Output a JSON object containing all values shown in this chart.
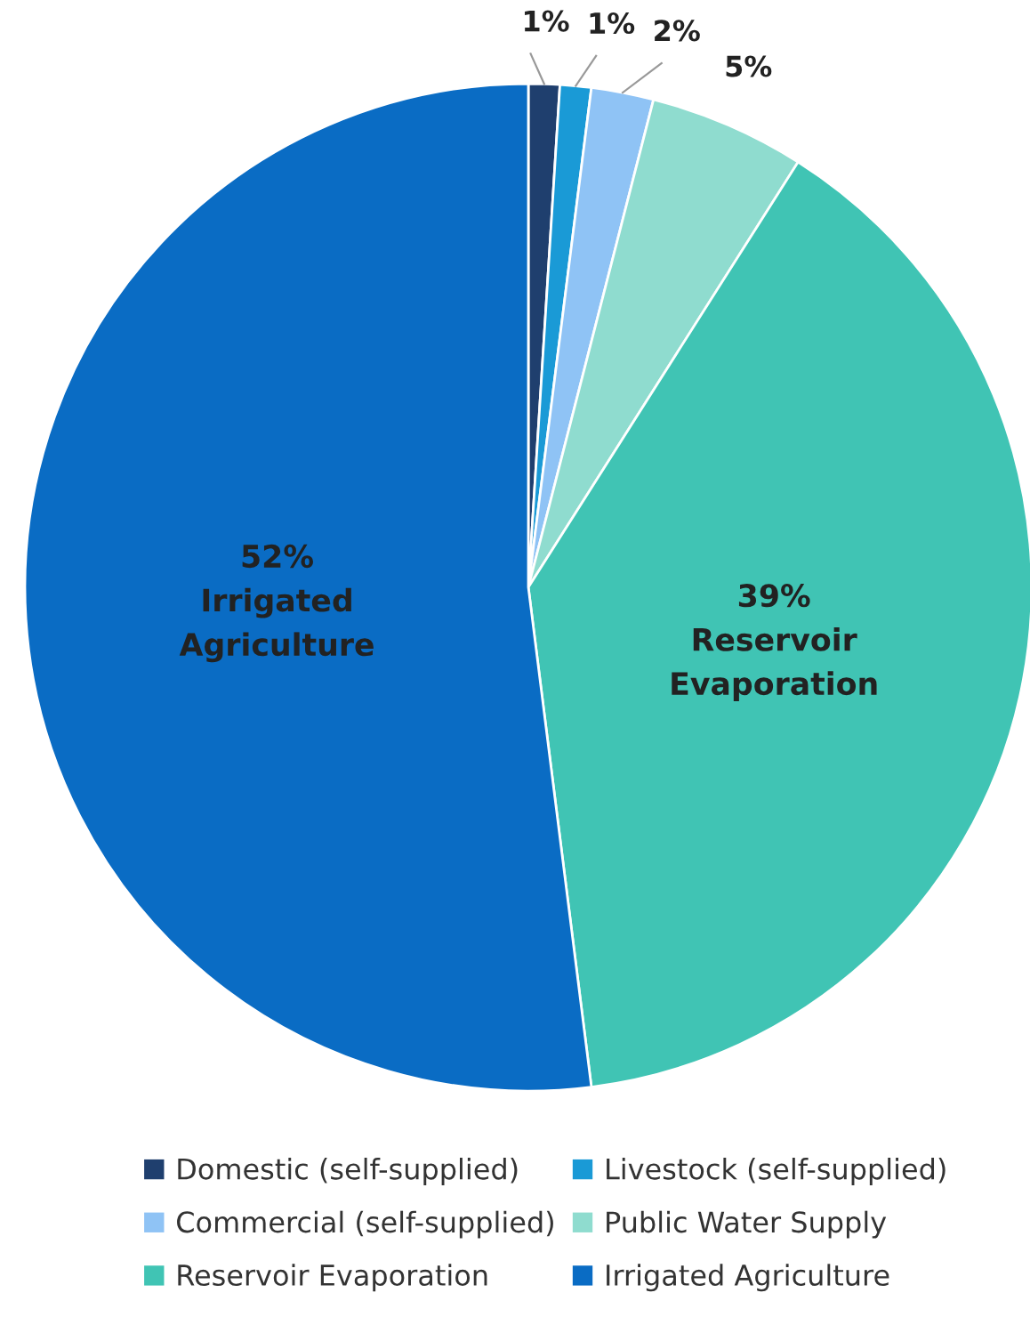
{
  "chart_data": {
    "type": "pie",
    "categories": [
      "Domestic (self-supplied)",
      "Livestock (self-supplied)",
      "Commercial (self-supplied)",
      "Public Water Supply",
      "Reservoir Evaporation",
      "Irrigated Agriculture"
    ],
    "values": [
      1,
      1,
      2,
      5,
      39,
      52
    ],
    "colors": [
      "#1f3f6e",
      "#1a9ad6",
      "#8fc3f5",
      "#8fdccf",
      "#40c4b4",
      "#0a6cc4"
    ],
    "value_labels": [
      "1%",
      "1%",
      "2%",
      "5%",
      "39%\nReservoir\nEvaporation",
      "52%\nIrrigated\nAgriculture"
    ],
    "legend": "bottom"
  }
}
